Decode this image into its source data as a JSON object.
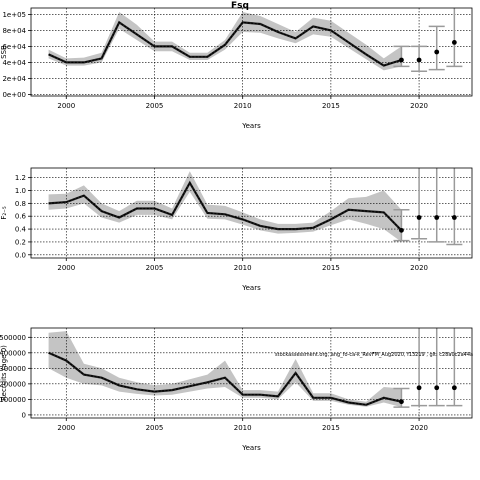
{
  "chart_data": [
    {
      "type": "line",
      "title": "Fsq",
      "xlabel": "Years",
      "ylabel": "SSB",
      "x": [
        1999,
        2000,
        2001,
        2002,
        2003,
        2004,
        2005,
        2006,
        2007,
        2008,
        2009,
        2010,
        2011,
        2012,
        2013,
        2014,
        2015,
        2016,
        2017,
        2018,
        2019
      ],
      "values": [
        50000,
        40000,
        40000,
        45000,
        90000,
        75000,
        60000,
        60000,
        47000,
        47000,
        62000,
        90000,
        88000,
        78000,
        70000,
        85000,
        80000,
        65000,
        50000,
        36000,
        43000
      ],
      "lower": [
        45000,
        36000,
        36000,
        40000,
        82000,
        68000,
        54000,
        54000,
        43000,
        43000,
        56000,
        78000,
        77000,
        70000,
        64000,
        75000,
        72000,
        58000,
        44000,
        30000,
        35000
      ],
      "upper": [
        56000,
        45000,
        46000,
        52000,
        103000,
        87000,
        66000,
        66000,
        52000,
        52000,
        68000,
        103000,
        98000,
        88000,
        78000,
        96000,
        92000,
        77000,
        62000,
        45000,
        60000
      ],
      "projection": {
        "x": [
          2019,
          2020,
          2021,
          2022
        ],
        "values": [
          43000,
          43000,
          53000,
          65000
        ],
        "lower": [
          35000,
          29000,
          31000,
          35000
        ],
        "upper": [
          60000,
          60000,
          85000,
          110000
        ]
      },
      "xlim": [
        1998,
        2023
      ],
      "ylim": [
        -2000,
        108000
      ],
      "xticks": [
        2000,
        2005,
        2010,
        2015,
        2020
      ],
      "yticks": [
        0,
        20000,
        40000,
        60000,
        80000,
        100000
      ],
      "ytick_labels": [
        "0e+00",
        "2e+04",
        "4e+04",
        "6e+04",
        "8e+04",
        "1e+05"
      ],
      "grid": true
    },
    {
      "type": "line",
      "title": "",
      "xlabel": "Years",
      "ylabel": "F₂₋₅",
      "x": [
        1999,
        2000,
        2001,
        2002,
        2003,
        2004,
        2005,
        2006,
        2007,
        2008,
        2009,
        2010,
        2011,
        2012,
        2013,
        2014,
        2015,
        2016,
        2017,
        2018,
        2019
      ],
      "values": [
        0.8,
        0.82,
        0.92,
        0.68,
        0.58,
        0.72,
        0.72,
        0.62,
        1.12,
        0.65,
        0.63,
        0.55,
        0.45,
        0.4,
        0.4,
        0.42,
        0.55,
        0.7,
        0.68,
        0.66,
        0.38
      ],
      "lower": [
        0.7,
        0.72,
        0.8,
        0.58,
        0.5,
        0.62,
        0.62,
        0.55,
        0.98,
        0.56,
        0.55,
        0.47,
        0.38,
        0.33,
        0.34,
        0.36,
        0.46,
        0.55,
        0.48,
        0.4,
        0.2
      ],
      "upper": [
        0.94,
        0.95,
        1.08,
        0.8,
        0.68,
        0.84,
        0.84,
        0.72,
        1.3,
        0.78,
        0.76,
        0.66,
        0.55,
        0.48,
        0.48,
        0.5,
        0.68,
        0.88,
        0.9,
        1.0,
        0.7
      ],
      "projection": {
        "x": [
          2019,
          2020,
          2021,
          2022
        ],
        "values": [
          0.38,
          0.58,
          0.58,
          0.58
        ],
        "lower": [
          0.22,
          0.25,
          0.2,
          0.16
        ],
        "upper": [
          0.7,
          1.4,
          1.4,
          1.4
        ]
      },
      "xlim": [
        1998,
        2023
      ],
      "ylim": [
        -0.05,
        1.35
      ],
      "xticks": [
        2000,
        2005,
        2010,
        2015,
        2020
      ],
      "yticks": [
        0.0,
        0.2,
        0.4,
        0.6,
        0.8,
        1.0,
        1.2
      ],
      "ytick_labels": [
        "0.0",
        "0.2",
        "0.4",
        "0.6",
        "0.8",
        "1.0",
        "1.2"
      ],
      "grid": true
    },
    {
      "type": "line",
      "title": "",
      "xlabel": "Years",
      "ylabel": "Recruits (age 0)",
      "note": "stockassessment.org, ang_fo-ca-k_RevFM_Aug2020, f13219 , git: c28a0c2a44a",
      "x": [
        1999,
        2000,
        2001,
        2002,
        2003,
        2004,
        2005,
        2006,
        2007,
        2008,
        2009,
        2010,
        2011,
        2012,
        2013,
        2014,
        2015,
        2016,
        2017,
        2018,
        2019
      ],
      "values": [
        400000,
        350000,
        260000,
        240000,
        190000,
        165000,
        150000,
        160000,
        185000,
        210000,
        240000,
        130000,
        130000,
        120000,
        270000,
        110000,
        110000,
        80000,
        65000,
        110000,
        85000
      ],
      "lower": [
        300000,
        240000,
        200000,
        190000,
        150000,
        135000,
        125000,
        130000,
        150000,
        170000,
        180000,
        110000,
        110000,
        100000,
        210000,
        90000,
        90000,
        65000,
        52000,
        80000,
        50000
      ],
      "upper": [
        530000,
        540000,
        330000,
        300000,
        240000,
        210000,
        190000,
        200000,
        230000,
        260000,
        350000,
        160000,
        160000,
        150000,
        360000,
        140000,
        140000,
        100000,
        85000,
        180000,
        170000
      ],
      "projection": {
        "x": [
          2019,
          2020,
          2021,
          2022
        ],
        "values": [
          85000,
          175000,
          175000,
          175000
        ],
        "lower": [
          50000,
          60000,
          60000,
          60000
        ],
        "upper": [
          170000,
          620000,
          620000,
          620000
        ]
      },
      "xlim": [
        1998,
        2023
      ],
      "ylim": [
        -20000,
        560000
      ],
      "xticks": [
        2000,
        2005,
        2010,
        2015,
        2020
      ],
      "yticks": [
        0,
        100000,
        200000,
        300000,
        400000,
        500000
      ],
      "ytick_labels": [
        "0",
        "100000",
        "200000",
        "300000",
        "400000",
        "500000"
      ],
      "grid": true
    }
  ],
  "style": {
    "band_color": "#c4c4c4",
    "line_color": "#1f1f1f",
    "projection_color": "#9a9a9a",
    "grid_color": "#000000"
  }
}
